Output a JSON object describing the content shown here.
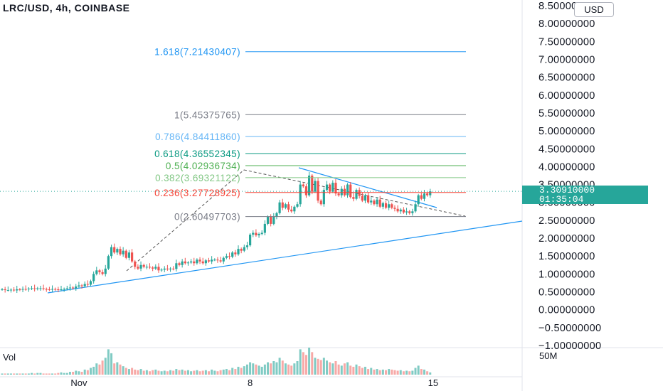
{
  "title": "LRC/USD, 4h, COINBASE",
  "currency": "USD",
  "volume_label": "Vol",
  "volume_scale_label": "50M",
  "last_price": "3.30910000",
  "countdown": "01:35:04",
  "colors": {
    "up": "#26a69a",
    "down": "#ef5350",
    "grid": "#e0e3eb",
    "trendline": "#2196f3",
    "price_line": "#26a69a"
  },
  "chart_data": {
    "type": "candlestick",
    "symbol": "LRC/USD",
    "interval": "4h",
    "exchange": "COINBASE",
    "ylim": [
      -1.0,
      8.5
    ],
    "y_ticks": [
      "8.50000000",
      "8.00000000",
      "7.50000000",
      "7.00000000",
      "6.50000000",
      "6.00000000",
      "5.50000000",
      "5.00000000",
      "4.50000000",
      "4.00000000",
      "3.50000000",
      "3.00000000",
      "2.50000000",
      "2.00000000",
      "1.50000000",
      "1.00000000",
      "0.50000000",
      "0.00000000",
      "−0.50000000",
      "−1.00000000"
    ],
    "x_ticks": [
      {
        "label": "Nov",
        "index": 26
      },
      {
        "label": "8",
        "index": 84
      },
      {
        "label": "15",
        "index": 146
      }
    ],
    "last_price": 3.3091,
    "fib_levels": [
      {
        "ratio": 1.618,
        "price": 7.21430407,
        "label": "1.618(7.21430407)",
        "color": "#2196f3"
      },
      {
        "ratio": 1,
        "price": 5.45375765,
        "label": "1(5.45375765)",
        "color": "#787b86"
      },
      {
        "ratio": 0.786,
        "price": 4.8441186,
        "label": "0.786(4.84411860)",
        "color": "#64b5f6"
      },
      {
        "ratio": 0.618,
        "price": 4.36552345,
        "label": "0.618(4.36552345)",
        "color": "#089981"
      },
      {
        "ratio": 0.5,
        "price": 4.02936734,
        "label": "0.5(4.02936734)",
        "color": "#4caf50"
      },
      {
        "ratio": 0.382,
        "price": 3.69321122,
        "label": "0.382(3.69321122)",
        "color": "#81c784"
      },
      {
        "ratio": 0.236,
        "price": 3.27728925,
        "label": "0.236(3.27728925)",
        "color": "#f44336"
      },
      {
        "ratio": 0,
        "price": 2.60497703,
        "label": "0(2.60497703)",
        "color": "#787b86"
      }
    ],
    "close": [
      0.57,
      0.55,
      0.55,
      0.56,
      0.54,
      0.57,
      0.56,
      0.58,
      0.57,
      0.59,
      0.6,
      0.58,
      0.6,
      0.6,
      0.58,
      0.57,
      0.56,
      0.58,
      0.57,
      0.56,
      0.57,
      0.58,
      0.6,
      0.62,
      0.6,
      0.65,
      0.68,
      0.66,
      0.72,
      0.7,
      0.8,
      1.0,
      1.1,
      1.05,
      1.0,
      1.15,
      1.5,
      1.75,
      1.6,
      1.7,
      1.55,
      1.65,
      1.45,
      1.6,
      1.35,
      1.2,
      1.15,
      1.25,
      1.2,
      1.2,
      1.18,
      1.15,
      1.2,
      1.1,
      1.12,
      1.15,
      1.13,
      1.15,
      1.14,
      1.3,
      1.25,
      1.35,
      1.3,
      1.32,
      1.35,
      1.3,
      1.4,
      1.35,
      1.3,
      1.38,
      1.35,
      1.4,
      1.4,
      1.38,
      1.35,
      1.45,
      1.5,
      1.48,
      1.6,
      1.55,
      1.7,
      1.65,
      1.75,
      1.8,
      2.1,
      2.15,
      2.08,
      2.12,
      2.15,
      2.4,
      2.6,
      2.4,
      2.6,
      2.7,
      3.0,
      2.85,
      2.95,
      2.8,
      2.75,
      2.88,
      2.95,
      3.5,
      3.45,
      3.2,
      3.75,
      3.3,
      3.6,
      3.05,
      2.95,
      3.35,
      3.5,
      3.3,
      3.55,
      3.25,
      3.2,
      3.38,
      3.2,
      3.5,
      3.15,
      3.1,
      3.35,
      3.18,
      3.05,
      3.2,
      3.0,
      3.05,
      2.95,
      3.08,
      2.88,
      2.98,
      2.85,
      2.95,
      2.85,
      2.82,
      2.75,
      2.8,
      2.72,
      2.75,
      2.7,
      2.75,
      2.95,
      3.2,
      3.1,
      3.25,
      3.2,
      3.31
    ],
    "volume": [
      2,
      2,
      2,
      2,
      2,
      2,
      2,
      2,
      2,
      2,
      3,
      2,
      3,
      3,
      2,
      2,
      2,
      2,
      2,
      3,
      4,
      3,
      3,
      5,
      5,
      7,
      6,
      5,
      9,
      8,
      12,
      14,
      20,
      18,
      25,
      30,
      45,
      38,
      20,
      22,
      18,
      15,
      12,
      10,
      12,
      9,
      8,
      10,
      7,
      8,
      6,
      8,
      9,
      7,
      6,
      7,
      6,
      8,
      7,
      10,
      8,
      9,
      7,
      8,
      6,
      7,
      8,
      6,
      7,
      8,
      6,
      9,
      7,
      6,
      8,
      9,
      10,
      8,
      12,
      10,
      14,
      12,
      15,
      18,
      22,
      20,
      18,
      16,
      14,
      18,
      22,
      20,
      24,
      22,
      30,
      25,
      20,
      18,
      16,
      20,
      24,
      45,
      40,
      35,
      48,
      40,
      30,
      28,
      26,
      30,
      25,
      22,
      20,
      24,
      18,
      16,
      20,
      22,
      16,
      14,
      18,
      15,
      12,
      14,
      10,
      12,
      9,
      10,
      8,
      9,
      8,
      10,
      9,
      8,
      7,
      8,
      6,
      7,
      6,
      7,
      12,
      16,
      10,
      9,
      6,
      4
    ]
  }
}
